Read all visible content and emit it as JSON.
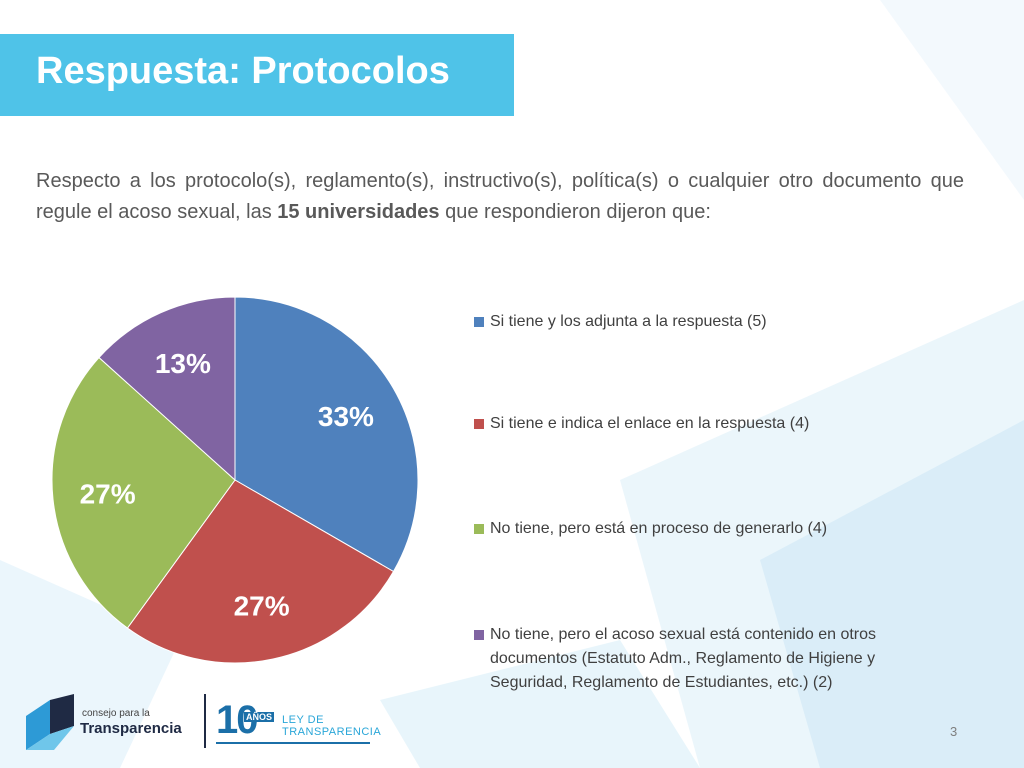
{
  "slide": {
    "title": "Respuesta: Protocolos",
    "intro_before": "Respecto a los protocolo(s), reglamento(s), instructivo(s), política(s) o cualquier otro documento que regule el acoso sexual, las ",
    "intro_bold": "15 universidades",
    "intro_after": " que respondieron dijeron que:",
    "page_number": "3",
    "title_bar_color": "#4fc3e8"
  },
  "footer": {
    "logo_line1": "consejo para la",
    "logo_line2": "Transparencia",
    "ten_digits": "10",
    "anos_label": "AÑOS",
    "ley_line1": "LEY DE",
    "ley_line2": "TRANSPARENCIA"
  },
  "chart_data": {
    "type": "pie",
    "legend_position": "right",
    "slices": [
      {
        "label": "Si tiene y los adjunta a la respuesta (5)",
        "value": 5,
        "percent_label": "33%",
        "color": "#4f81bd"
      },
      {
        "label": "Si tiene e indica el enlace en la respuesta (4)",
        "value": 4,
        "percent_label": "27%",
        "color": "#c0504d"
      },
      {
        "label": "No tiene, pero está en proceso de generarlo (4)",
        "value": 4,
        "percent_label": "27%",
        "color": "#9bbb59"
      },
      {
        "label": "No tiene, pero el acoso sexual está contenido en otros documentos (Estatuto Adm., Reglamento de Higiene y Seguridad, Reglamento de Estudiantes, etc.) (2)",
        "value": 2,
        "percent_label": "13%",
        "color": "#8064a2"
      }
    ]
  }
}
